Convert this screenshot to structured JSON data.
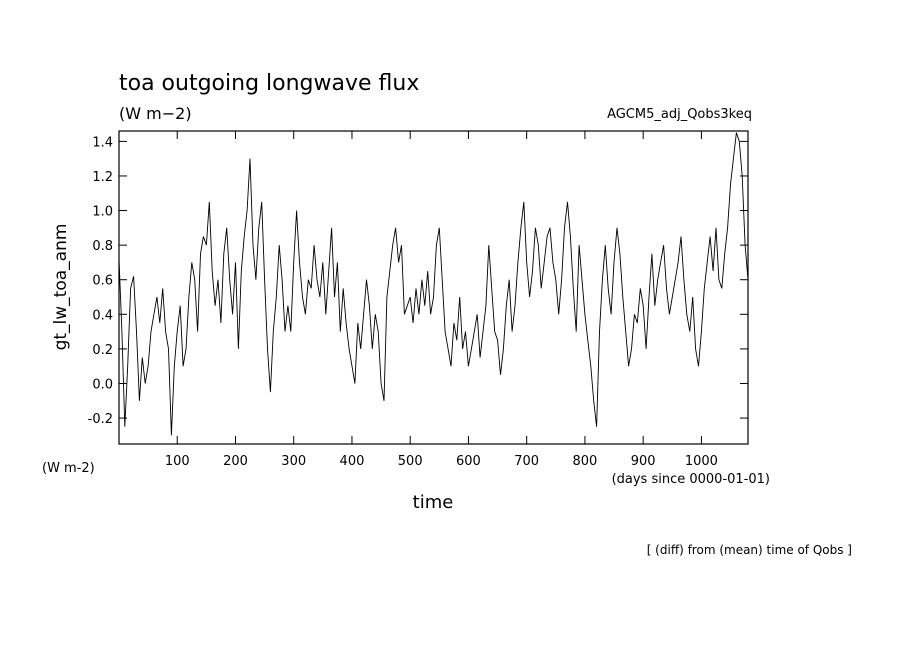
{
  "chart_data": {
    "type": "line",
    "title": "toa outgoing longwave flux",
    "subtitle": "(W m−2)",
    "run_label": "AGCM5_adj_Qobs3keq",
    "y_label": "gt_lw_toa_anm",
    "y_units": "(W m-2)",
    "x_label": "time",
    "x_units": "(days since 0000-01-01)",
    "note": "[ (diff) from (mean) time of Qobs ]",
    "xlim": [
      0,
      1080
    ],
    "ylim": [
      -0.35,
      1.46
    ],
    "xticks": [
      100,
      200,
      300,
      400,
      500,
      600,
      700,
      800,
      900,
      1000
    ],
    "yticks": [
      -0.2,
      {
        "value": 0,
        "label": "0.0"
      },
      0.2,
      0.4,
      0.6,
      0.8,
      {
        "value": 1,
        "label": "1.0"
      },
      1.2,
      1.4
    ],
    "series": [
      {
        "color": "#000000",
        "x": [
          0,
          5,
          10,
          15,
          20,
          25,
          30,
          35,
          40,
          45,
          50,
          55,
          60,
          65,
          70,
          75,
          80,
          85,
          90,
          95,
          100,
          105,
          110,
          115,
          120,
          125,
          130,
          135,
          140,
          145,
          150,
          155,
          160,
          165,
          170,
          175,
          180,
          185,
          190,
          195,
          200,
          205,
          210,
          215,
          220,
          225,
          230,
          235,
          240,
          245,
          250,
          255,
          260,
          265,
          270,
          275,
          280,
          285,
          290,
          295,
          300,
          305,
          310,
          315,
          320,
          325,
          330,
          335,
          340,
          345,
          350,
          355,
          360,
          365,
          370,
          375,
          380,
          385,
          390,
          395,
          400,
          405,
          410,
          415,
          420,
          425,
          430,
          435,
          440,
          445,
          450,
          455,
          460,
          465,
          470,
          475,
          480,
          485,
          490,
          495,
          500,
          505,
          510,
          515,
          520,
          525,
          530,
          535,
          540,
          545,
          550,
          555,
          560,
          565,
          570,
          575,
          580,
          585,
          590,
          595,
          600,
          605,
          610,
          615,
          620,
          625,
          630,
          635,
          640,
          645,
          650,
          655,
          660,
          665,
          670,
          675,
          680,
          685,
          690,
          695,
          700,
          705,
          710,
          715,
          720,
          725,
          730,
          735,
          740,
          745,
          750,
          755,
          760,
          765,
          770,
          775,
          780,
          785,
          790,
          795,
          800,
          805,
          810,
          815,
          820,
          825,
          830,
          835,
          840,
          845,
          850,
          855,
          860,
          865,
          870,
          875,
          880,
          885,
          890,
          895,
          900,
          905,
          910,
          915,
          920,
          925,
          930,
          935,
          940,
          945,
          950,
          955,
          960,
          965,
          970,
          975,
          980,
          985,
          990,
          995,
          1000,
          1005,
          1010,
          1015,
          1020,
          1025,
          1030,
          1035,
          1040,
          1045,
          1050,
          1055,
          1060,
          1065,
          1070,
          1075,
          1080
        ],
        "values": [
          0.72,
          0.3,
          -0.25,
          0.1,
          0.55,
          0.62,
          0.3,
          -0.1,
          0.15,
          0.0,
          0.1,
          0.3,
          0.4,
          0.5,
          0.35,
          0.55,
          0.3,
          0.2,
          -0.3,
          0.1,
          0.3,
          0.45,
          0.1,
          0.2,
          0.5,
          0.7,
          0.6,
          0.3,
          0.75,
          0.85,
          0.8,
          1.05,
          0.65,
          0.45,
          0.6,
          0.35,
          0.75,
          0.9,
          0.6,
          0.4,
          0.7,
          0.2,
          0.65,
          0.85,
          1.0,
          1.3,
          0.8,
          0.6,
          0.9,
          1.05,
          0.6,
          0.2,
          -0.05,
          0.3,
          0.5,
          0.8,
          0.6,
          0.3,
          0.45,
          0.3,
          0.7,
          1.0,
          0.7,
          0.5,
          0.4,
          0.6,
          0.55,
          0.8,
          0.6,
          0.5,
          0.7,
          0.4,
          0.65,
          0.9,
          0.5,
          0.7,
          0.3,
          0.55,
          0.35,
          0.2,
          0.1,
          0.0,
          0.35,
          0.2,
          0.4,
          0.6,
          0.45,
          0.2,
          0.4,
          0.3,
          0.0,
          -0.1,
          0.5,
          0.65,
          0.8,
          0.9,
          0.7,
          0.8,
          0.4,
          0.45,
          0.5,
          0.35,
          0.55,
          0.4,
          0.6,
          0.45,
          0.65,
          0.4,
          0.5,
          0.8,
          0.9,
          0.6,
          0.3,
          0.2,
          0.1,
          0.35,
          0.25,
          0.5,
          0.2,
          0.3,
          0.1,
          0.2,
          0.3,
          0.4,
          0.15,
          0.3,
          0.45,
          0.8,
          0.55,
          0.3,
          0.25,
          0.05,
          0.2,
          0.45,
          0.6,
          0.3,
          0.45,
          0.7,
          0.9,
          1.05,
          0.7,
          0.5,
          0.65,
          0.9,
          0.8,
          0.55,
          0.7,
          0.85,
          0.9,
          0.7,
          0.6,
          0.4,
          0.6,
          0.9,
          1.05,
          0.85,
          0.55,
          0.3,
          0.8,
          0.6,
          0.4,
          0.25,
          0.1,
          -0.1,
          -0.25,
          0.3,
          0.6,
          0.8,
          0.55,
          0.4,
          0.7,
          0.9,
          0.75,
          0.5,
          0.3,
          0.1,
          0.2,
          0.4,
          0.35,
          0.55,
          0.45,
          0.2,
          0.5,
          0.75,
          0.45,
          0.6,
          0.7,
          0.8,
          0.55,
          0.4,
          0.5,
          0.6,
          0.7,
          0.85,
          0.6,
          0.4,
          0.3,
          0.5,
          0.2,
          0.1,
          0.3,
          0.55,
          0.7,
          0.85,
          0.65,
          0.9,
          0.6,
          0.55,
          0.75,
          0.9,
          1.15,
          1.3,
          1.45,
          1.4,
          1.2,
          0.8,
          0.6
        ]
      }
    ]
  }
}
